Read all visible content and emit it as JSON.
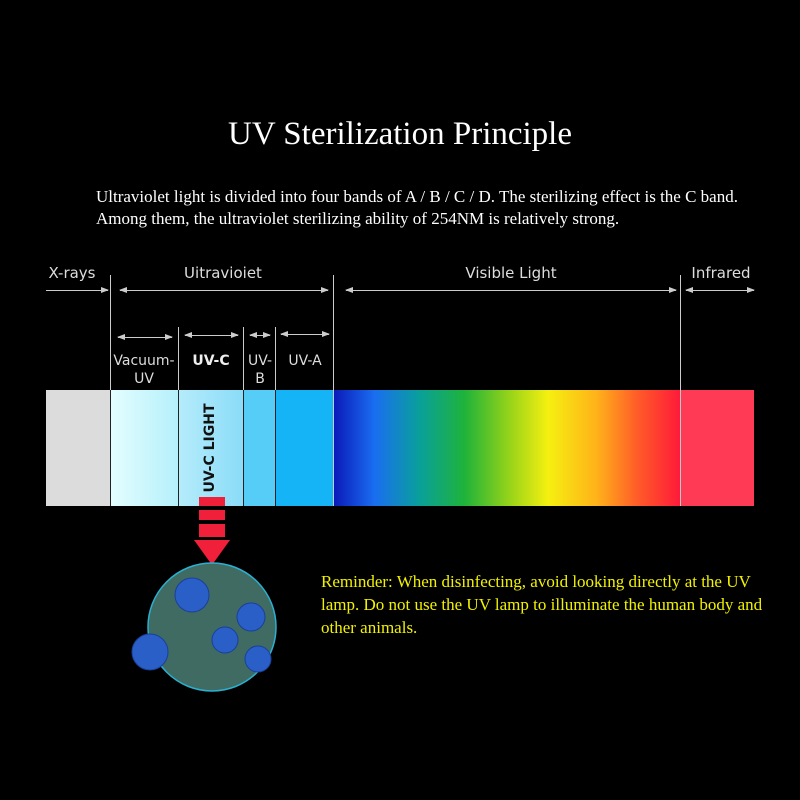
{
  "title": "UV Sterilization Principle",
  "intro": "Ultraviolet light is divided into four bands of A / B / C / D. The sterilizing effect is the C band. Among them, the ultraviolet sterilizing ability of 254NM is relatively strong.",
  "spectrum": {
    "bands": [
      "X-rays",
      "Uitravioiet",
      "Visible Light",
      "Infrared"
    ],
    "uv_subbands": [
      "Vacuum-UV",
      "UV-C",
      "UV-B",
      "UV-A"
    ],
    "highlight": "UV-C LIGHT",
    "colors": {
      "xray": "#dcdcdc",
      "infrared": "#ff3a55",
      "arrow": "#f0203a"
    }
  },
  "reminder": "Reminder: When disinfecting, avoid looking directly at the UV lamp. Do not use the UV lamp to illuminate the human body and other animals."
}
